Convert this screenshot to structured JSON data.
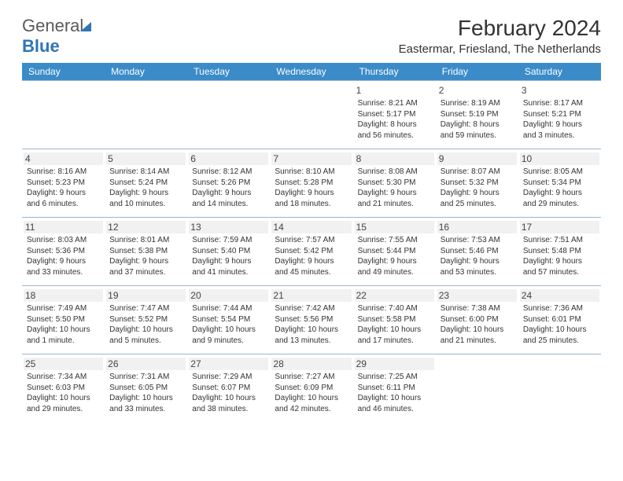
{
  "brand": {
    "general": "General",
    "blue": "Blue"
  },
  "title": "February 2024",
  "location": "Eastermar, Friesland, The Netherlands",
  "colors": {
    "header_bg": "#3b8bc9",
    "header_fg": "#ffffff",
    "rule": "#9bb7cc",
    "daynum_bg": "#f1f1f1",
    "text": "#333333"
  },
  "dow": [
    "Sunday",
    "Monday",
    "Tuesday",
    "Wednesday",
    "Thursday",
    "Friday",
    "Saturday"
  ],
  "weeks": [
    [
      {},
      {},
      {},
      {},
      {
        "n": "1",
        "sr": "Sunrise: 8:21 AM",
        "ss": "Sunset: 5:17 PM",
        "dl": "Daylight: 8 hours and 56 minutes."
      },
      {
        "n": "2",
        "sr": "Sunrise: 8:19 AM",
        "ss": "Sunset: 5:19 PM",
        "dl": "Daylight: 8 hours and 59 minutes."
      },
      {
        "n": "3",
        "sr": "Sunrise: 8:17 AM",
        "ss": "Sunset: 5:21 PM",
        "dl": "Daylight: 9 hours and 3 minutes."
      }
    ],
    [
      {
        "n": "4",
        "sr": "Sunrise: 8:16 AM",
        "ss": "Sunset: 5:23 PM",
        "dl": "Daylight: 9 hours and 6 minutes."
      },
      {
        "n": "5",
        "sr": "Sunrise: 8:14 AM",
        "ss": "Sunset: 5:24 PM",
        "dl": "Daylight: 9 hours and 10 minutes."
      },
      {
        "n": "6",
        "sr": "Sunrise: 8:12 AM",
        "ss": "Sunset: 5:26 PM",
        "dl": "Daylight: 9 hours and 14 minutes."
      },
      {
        "n": "7",
        "sr": "Sunrise: 8:10 AM",
        "ss": "Sunset: 5:28 PM",
        "dl": "Daylight: 9 hours and 18 minutes."
      },
      {
        "n": "8",
        "sr": "Sunrise: 8:08 AM",
        "ss": "Sunset: 5:30 PM",
        "dl": "Daylight: 9 hours and 21 minutes."
      },
      {
        "n": "9",
        "sr": "Sunrise: 8:07 AM",
        "ss": "Sunset: 5:32 PM",
        "dl": "Daylight: 9 hours and 25 minutes."
      },
      {
        "n": "10",
        "sr": "Sunrise: 8:05 AM",
        "ss": "Sunset: 5:34 PM",
        "dl": "Daylight: 9 hours and 29 minutes."
      }
    ],
    [
      {
        "n": "11",
        "sr": "Sunrise: 8:03 AM",
        "ss": "Sunset: 5:36 PM",
        "dl": "Daylight: 9 hours and 33 minutes."
      },
      {
        "n": "12",
        "sr": "Sunrise: 8:01 AM",
        "ss": "Sunset: 5:38 PM",
        "dl": "Daylight: 9 hours and 37 minutes."
      },
      {
        "n": "13",
        "sr": "Sunrise: 7:59 AM",
        "ss": "Sunset: 5:40 PM",
        "dl": "Daylight: 9 hours and 41 minutes."
      },
      {
        "n": "14",
        "sr": "Sunrise: 7:57 AM",
        "ss": "Sunset: 5:42 PM",
        "dl": "Daylight: 9 hours and 45 minutes."
      },
      {
        "n": "15",
        "sr": "Sunrise: 7:55 AM",
        "ss": "Sunset: 5:44 PM",
        "dl": "Daylight: 9 hours and 49 minutes."
      },
      {
        "n": "16",
        "sr": "Sunrise: 7:53 AM",
        "ss": "Sunset: 5:46 PM",
        "dl": "Daylight: 9 hours and 53 minutes."
      },
      {
        "n": "17",
        "sr": "Sunrise: 7:51 AM",
        "ss": "Sunset: 5:48 PM",
        "dl": "Daylight: 9 hours and 57 minutes."
      }
    ],
    [
      {
        "n": "18",
        "sr": "Sunrise: 7:49 AM",
        "ss": "Sunset: 5:50 PM",
        "dl": "Daylight: 10 hours and 1 minute."
      },
      {
        "n": "19",
        "sr": "Sunrise: 7:47 AM",
        "ss": "Sunset: 5:52 PM",
        "dl": "Daylight: 10 hours and 5 minutes."
      },
      {
        "n": "20",
        "sr": "Sunrise: 7:44 AM",
        "ss": "Sunset: 5:54 PM",
        "dl": "Daylight: 10 hours and 9 minutes."
      },
      {
        "n": "21",
        "sr": "Sunrise: 7:42 AM",
        "ss": "Sunset: 5:56 PM",
        "dl": "Daylight: 10 hours and 13 minutes."
      },
      {
        "n": "22",
        "sr": "Sunrise: 7:40 AM",
        "ss": "Sunset: 5:58 PM",
        "dl": "Daylight: 10 hours and 17 minutes."
      },
      {
        "n": "23",
        "sr": "Sunrise: 7:38 AM",
        "ss": "Sunset: 6:00 PM",
        "dl": "Daylight: 10 hours and 21 minutes."
      },
      {
        "n": "24",
        "sr": "Sunrise: 7:36 AM",
        "ss": "Sunset: 6:01 PM",
        "dl": "Daylight: 10 hours and 25 minutes."
      }
    ],
    [
      {
        "n": "25",
        "sr": "Sunrise: 7:34 AM",
        "ss": "Sunset: 6:03 PM",
        "dl": "Daylight: 10 hours and 29 minutes."
      },
      {
        "n": "26",
        "sr": "Sunrise: 7:31 AM",
        "ss": "Sunset: 6:05 PM",
        "dl": "Daylight: 10 hours and 33 minutes."
      },
      {
        "n": "27",
        "sr": "Sunrise: 7:29 AM",
        "ss": "Sunset: 6:07 PM",
        "dl": "Daylight: 10 hours and 38 minutes."
      },
      {
        "n": "28",
        "sr": "Sunrise: 7:27 AM",
        "ss": "Sunset: 6:09 PM",
        "dl": "Daylight: 10 hours and 42 minutes."
      },
      {
        "n": "29",
        "sr": "Sunrise: 7:25 AM",
        "ss": "Sunset: 6:11 PM",
        "dl": "Daylight: 10 hours and 46 minutes."
      },
      {},
      {}
    ]
  ]
}
